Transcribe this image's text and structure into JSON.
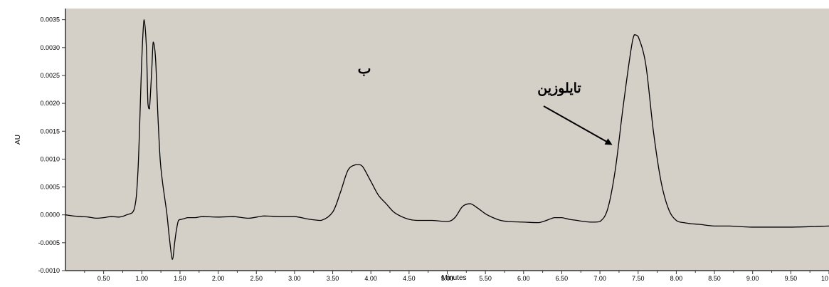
{
  "chart_data": {
    "type": "line",
    "title": "",
    "xlabel": "Minutes",
    "ylabel": "AU",
    "xlim": [
      0.0,
      10.0
    ],
    "ylim": [
      -0.001,
      0.0037
    ],
    "grid": false,
    "legend": "none",
    "x_ticks": [
      0.5,
      1.0,
      1.5,
      2.0,
      2.5,
      3.0,
      3.5,
      4.0,
      4.5,
      5.0,
      5.5,
      6.0,
      6.5,
      7.0,
      7.5,
      8.0,
      8.5,
      9.0,
      9.5,
      10.0
    ],
    "x_tick_labels": [
      "0.50",
      "1.00",
      "1.50",
      "2.00",
      "2.50",
      "3.00",
      "3.50",
      "4.00",
      "4.50",
      "5.00",
      "5.50",
      "6.00",
      "6.50",
      "7.00",
      "7.50",
      "8.00",
      "8.50",
      "9.00",
      "9.50",
      "10"
    ],
    "y_ticks": [
      -0.001,
      -0.0005,
      0.0,
      0.0005,
      0.001,
      0.0015,
      0.002,
      0.0025,
      0.003,
      0.0035
    ],
    "y_tick_labels": [
      "-0.0010",
      "-0.0005",
      "0.0000",
      "0.0005",
      "0.0010",
      "0.0015",
      "0.0020",
      "0.0025",
      "0.0030",
      "0.0035"
    ],
    "series": [
      {
        "name": "",
        "color": "#000000",
        "x": [
          0.0,
          0.1,
          0.2,
          0.3,
          0.4,
          0.5,
          0.6,
          0.7,
          0.8,
          0.9,
          0.95,
          1.0,
          1.03,
          1.06,
          1.08,
          1.1,
          1.13,
          1.15,
          1.18,
          1.21,
          1.24,
          1.27,
          1.3,
          1.33,
          1.36,
          1.4,
          1.43,
          1.45,
          1.48,
          1.52,
          1.55,
          1.6,
          1.7,
          1.8,
          2.0,
          2.2,
          2.4,
          2.6,
          2.8,
          3.0,
          3.2,
          3.35,
          3.5,
          3.6,
          3.7,
          3.8,
          3.85,
          3.9,
          4.0,
          4.1,
          4.2,
          4.3,
          4.4,
          4.5,
          4.6,
          4.8,
          5.0,
          5.1,
          5.2,
          5.3,
          5.4,
          5.5,
          5.6,
          5.7,
          5.8,
          6.0,
          6.2,
          6.4,
          6.5,
          6.6,
          6.7,
          6.8,
          6.9,
          7.0,
          7.1,
          7.2,
          7.3,
          7.4,
          7.45,
          7.5,
          7.6,
          7.7,
          7.8,
          7.9,
          8.0,
          8.1,
          8.2,
          8.3,
          8.5,
          8.7,
          9.0,
          9.5,
          10.0
        ],
        "y": [
          0.0,
          -2e-05,
          -3e-05,
          -4e-05,
          -6e-05,
          -5e-05,
          -3e-05,
          -4e-05,
          0.0,
          0.0001,
          0.0008,
          0.0028,
          0.0035,
          0.003,
          0.002,
          0.0019,
          0.0026,
          0.0031,
          0.0028,
          0.0018,
          0.001,
          0.0006,
          0.0003,
          0.0,
          -0.0004,
          -0.0008,
          -0.0005,
          -0.0003,
          -0.0001,
          -8e-05,
          -7e-05,
          -5e-05,
          -5e-05,
          -3e-05,
          -4e-05,
          -3e-05,
          -6e-05,
          -2e-05,
          -3e-05,
          -3e-05,
          -8e-05,
          -0.0001,
          5e-05,
          0.0004,
          0.0008,
          0.0009,
          0.0009,
          0.00085,
          0.0006,
          0.00035,
          0.0002,
          5e-05,
          -3e-05,
          -8e-05,
          -0.0001,
          -0.0001,
          -0.00012,
          -5e-05,
          0.00015,
          0.0002,
          0.00012,
          2e-05,
          -5e-05,
          -0.0001,
          -0.00012,
          -0.00013,
          -0.00014,
          -5e-05,
          -5e-05,
          -8e-05,
          -0.0001,
          -0.00012,
          -0.00013,
          -0.00012,
          0.0001,
          0.0008,
          0.0019,
          0.0029,
          0.00323,
          0.0032,
          0.0027,
          0.0015,
          0.0006,
          0.0001,
          -0.0001,
          -0.00014,
          -0.00016,
          -0.00017,
          -0.0002,
          -0.0002,
          -0.00022,
          -0.00022,
          -0.0002
        ]
      }
    ],
    "annotations": [
      {
        "text": "ب"
      },
      {
        "text": "تايلوزين"
      }
    ]
  }
}
